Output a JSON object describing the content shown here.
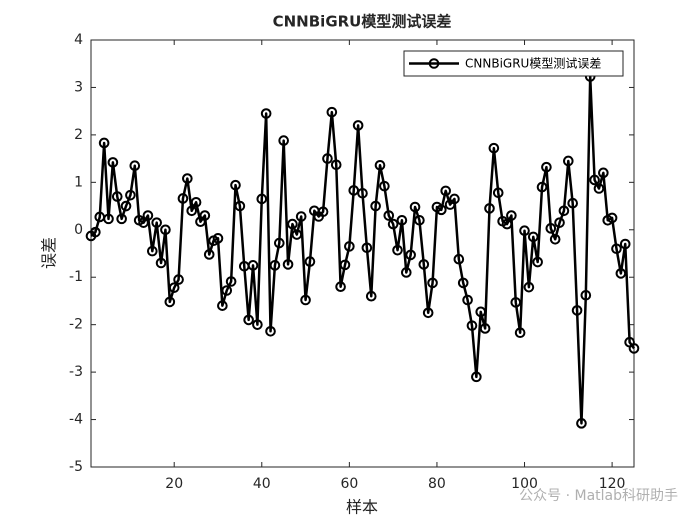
{
  "chart_data": {
    "type": "line",
    "title": "CNNBiGRU模型测试误差",
    "xlabel": "样本",
    "ylabel": "误差",
    "x": [
      1,
      2,
      3,
      4,
      5,
      6,
      7,
      8,
      9,
      10,
      11,
      12,
      13,
      14,
      15,
      16,
      17,
      18,
      19,
      20,
      21,
      22,
      23,
      24,
      25,
      26,
      27,
      28,
      29,
      30,
      31,
      32,
      33,
      34,
      35,
      36,
      37,
      38,
      39,
      40,
      41,
      42,
      43,
      44,
      45,
      46,
      47,
      48,
      49,
      50,
      51,
      52,
      53,
      54,
      55,
      56,
      57,
      58,
      59,
      60,
      61,
      62,
      63,
      64,
      65,
      66,
      67,
      68,
      69,
      70,
      71,
      72,
      73,
      74,
      75,
      76,
      77,
      78,
      79,
      80,
      81,
      82,
      83,
      84,
      85,
      86,
      87,
      88,
      89,
      90,
      91,
      92,
      93,
      94,
      95,
      96,
      97,
      98,
      99,
      100,
      101,
      102,
      103,
      104,
      105,
      106,
      107,
      108,
      109,
      110,
      111,
      112,
      113,
      114,
      115,
      116,
      117,
      118,
      119,
      120,
      121,
      122,
      123,
      124,
      125
    ],
    "series": [
      {
        "name": "CNNBiGRU模型测试误差",
        "color": "#000000",
        "values": [
          -0.13,
          -0.05,
          0.27,
          1.83,
          0.23,
          1.42,
          0.7,
          0.23,
          0.5,
          0.73,
          1.35,
          0.2,
          0.15,
          0.3,
          -0.45,
          0.15,
          -0.7,
          0.0,
          -1.52,
          -1.22,
          -1.05,
          0.66,
          1.08,
          0.4,
          0.58,
          0.17,
          0.3,
          -0.52,
          -0.23,
          -0.18,
          -1.6,
          -1.28,
          -1.09,
          0.94,
          0.5,
          -0.77,
          -1.9,
          -0.75,
          -2.0,
          0.65,
          2.45,
          -2.14,
          -0.75,
          -0.28,
          1.88,
          -0.73,
          0.12,
          -0.1,
          0.28,
          -1.48,
          -0.67,
          0.4,
          0.28,
          0.38,
          1.5,
          2.48,
          1.37,
          -1.2,
          -0.74,
          -0.35,
          0.83,
          2.2,
          0.77,
          -0.38,
          -1.4,
          0.5,
          1.36,
          0.92,
          0.3,
          0.12,
          -0.43,
          0.2,
          -0.9,
          -0.53,
          0.48,
          0.2,
          -0.73,
          -1.75,
          -1.12,
          0.48,
          0.42,
          0.82,
          0.53,
          0.65,
          -0.62,
          -1.12,
          -1.48,
          -2.02,
          -3.1,
          -1.73,
          -2.08,
          0.45,
          1.72,
          0.78,
          0.18,
          0.12,
          0.3,
          -1.53,
          -2.17,
          -0.02,
          -1.21,
          -0.15,
          -0.68,
          0.9,
          1.32,
          0.03,
          -0.2,
          0.15,
          0.4,
          1.45,
          0.56,
          -1.7,
          -4.08,
          -1.38,
          3.23,
          1.05,
          0.87,
          1.2,
          0.2,
          0.25,
          -0.4,
          -0.92,
          -0.3,
          -2.37,
          -2.5
        ]
      }
    ],
    "xlim": [
      1,
      125
    ],
    "xticks": [
      20,
      40,
      60,
      80,
      100,
      120
    ],
    "ylim": [
      -5,
      4
    ],
    "yticks": [
      -5,
      -4,
      -3,
      -2,
      -1,
      0,
      1,
      2,
      3,
      4
    ],
    "legend": "upper right",
    "watermark": "公众号 · Matlab科研助手"
  }
}
